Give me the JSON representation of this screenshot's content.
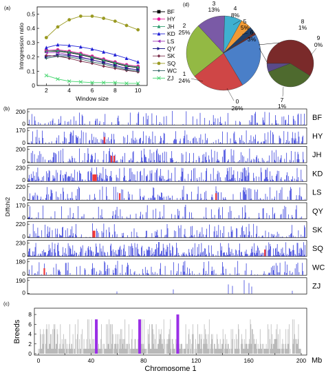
{
  "colors": {
    "BF": "#000000",
    "HY": "#e8179b",
    "JH": "#2e9d6e",
    "KD": "#1f1fd6",
    "LS": "#9b34b8",
    "QY": "#1a1a8a",
    "SK": "#7a2e4a",
    "SQ": "#9a9a22",
    "WC": "#2e6060",
    "ZJ": "#3fd46a",
    "bar_blue": "#1f28d8",
    "bar_red": "#f03a3a",
    "bar_grey": "#b9b9b9",
    "highlight_purple": "#9a2ee6"
  },
  "chart_data": [
    {
      "panel": "(a)",
      "type": "line",
      "xlabel": "Window size",
      "ylabel": "Introgression ratio",
      "x": [
        2,
        3,
        4,
        5,
        6,
        7,
        8,
        9,
        10
      ],
      "xticks": [
        2,
        4,
        6,
        8,
        10
      ],
      "yticks": [
        0.0,
        0.1,
        0.2,
        0.3,
        0.4,
        0.5
      ],
      "ylim": [
        0,
        0.55
      ],
      "xlim": [
        1.2,
        10.8
      ],
      "legend_position": "right",
      "series": [
        {
          "name": "BF",
          "marker": "square",
          "values": [
            0.24,
            0.24,
            0.23,
            0.215,
            0.195,
            0.175,
            0.155,
            0.135,
            0.125
          ]
        },
        {
          "name": "HY",
          "marker": "circle",
          "values": [
            0.245,
            0.25,
            0.24,
            0.225,
            0.205,
            0.185,
            0.165,
            0.145,
            0.135
          ]
        },
        {
          "name": "JH",
          "marker": "triangle-up",
          "values": [
            0.24,
            0.245,
            0.235,
            0.22,
            0.2,
            0.18,
            0.16,
            0.14,
            0.13
          ]
        },
        {
          "name": "KD",
          "marker": "triangle-up",
          "values": [
            0.265,
            0.285,
            0.28,
            0.27,
            0.255,
            0.235,
            0.215,
            0.19,
            0.165
          ]
        },
        {
          "name": "LS",
          "marker": "triangle-left",
          "values": [
            0.23,
            0.23,
            0.215,
            0.2,
            0.18,
            0.16,
            0.14,
            0.12,
            0.11
          ]
        },
        {
          "name": "QY",
          "marker": "triangle-right",
          "values": [
            0.2,
            0.215,
            0.21,
            0.195,
            0.18,
            0.16,
            0.14,
            0.12,
            0.11
          ]
        },
        {
          "name": "SK",
          "marker": "diamond",
          "values": [
            0.21,
            0.205,
            0.19,
            0.17,
            0.155,
            0.135,
            0.12,
            0.105,
            0.095
          ]
        },
        {
          "name": "SQ",
          "marker": "hexagon",
          "values": [
            0.335,
            0.41,
            0.46,
            0.485,
            0.485,
            0.47,
            0.45,
            0.42,
            0.39
          ]
        },
        {
          "name": "WC",
          "marker": "star",
          "values": [
            0.19,
            0.205,
            0.2,
            0.185,
            0.165,
            0.15,
            0.13,
            0.11,
            0.1
          ]
        },
        {
          "name": "ZJ",
          "marker": "x",
          "values": [
            0.07,
            0.045,
            0.03,
            0.025,
            0.02,
            0.02,
            0.02,
            0.015,
            0.015
          ]
        }
      ]
    },
    {
      "panel": "(d)",
      "type": "pie",
      "slices": [
        {
          "label": "0",
          "percent": "26%",
          "value": 26,
          "color": "#4a7fc8"
        },
        {
          "label": "1",
          "percent": "24%",
          "value": 24,
          "color": "#cf4646"
        },
        {
          "label": "2",
          "percent": "25%",
          "value": 25,
          "color": "#93b944"
        },
        {
          "label": "3",
          "percent": "13%",
          "value": 13,
          "color": "#7a5aa6"
        },
        {
          "label": "4",
          "percent": "8%",
          "value": 8,
          "color": "#3fb0d0"
        },
        {
          "label": "5",
          "percent": "5%",
          "value": 5,
          "color": "#f09a36"
        },
        {
          "label": "6",
          "percent": "3%",
          "value": 3,
          "color": "#1f3f6a"
        },
        {
          "label": "7-9",
          "percent": "",
          "value": 1,
          "color": "#6a2d2d"
        }
      ],
      "sub_pie": [
        {
          "label": "7",
          "percent": "1%",
          "value": 1.0,
          "color": "#7a2a2a"
        },
        {
          "label": "8",
          "percent": "1%",
          "value": 0.6,
          "color": "#4e6a2e"
        },
        {
          "label": "9",
          "percent": "0%",
          "value": 0.1,
          "color": "#5a4a8a"
        }
      ]
    },
    {
      "panel": "(b)",
      "type": "bar",
      "ylabel": "Diffchi2",
      "tracks": [
        {
          "name": "BF",
          "ymax": 200,
          "tick": "200",
          "density": 0.35,
          "red": []
        },
        {
          "name": "HY",
          "ymax": 170,
          "tick": "170",
          "density": 0.55,
          "red": [
            55
          ]
        },
        {
          "name": "JH",
          "ymax": 200,
          "tick": "200",
          "density": 0.6,
          "red": [
            60,
            62
          ]
        },
        {
          "name": "KD",
          "ymax": 230,
          "tick": "230",
          "density": 0.65,
          "red": [
            47,
            48,
            49
          ]
        },
        {
          "name": "LS",
          "ymax": 220,
          "tick": "220",
          "density": 0.45,
          "red": [
            66,
            135
          ]
        },
        {
          "name": "QY",
          "ymax": 170,
          "tick": "170",
          "density": 0.3,
          "red": []
        },
        {
          "name": "SK",
          "ymax": 220,
          "tick": "220",
          "density": 0.45,
          "red": [
            47,
            48
          ]
        },
        {
          "name": "SQ",
          "ymax": 230,
          "tick": "230",
          "density": 0.9,
          "red": [
            170
          ]
        },
        {
          "name": "WC",
          "ymax": 180,
          "tick": "180",
          "density": 0.4,
          "red": [
            12
          ]
        },
        {
          "name": "ZJ",
          "ymax": 190,
          "tick": "190",
          "density": 0.0,
          "red": []
        }
      ]
    },
    {
      "panel": "(c)",
      "type": "bar",
      "ylabel": "Breeds",
      "xlabel": "Chromosome 1",
      "x_unit": "Mb",
      "xlim": [
        0,
        200
      ],
      "xticks": [
        0,
        20,
        40,
        60,
        80,
        100,
        120,
        140,
        160,
        180,
        200
      ],
      "yticks": [
        0,
        2,
        4,
        6,
        8
      ],
      "ylim": [
        0,
        9
      ],
      "highlights": [
        {
          "position_mb": 44,
          "breeds": 7
        },
        {
          "position_mb": 77,
          "breeds": 7
        },
        {
          "position_mb": 106,
          "breeds": 8
        }
      ]
    }
  ]
}
